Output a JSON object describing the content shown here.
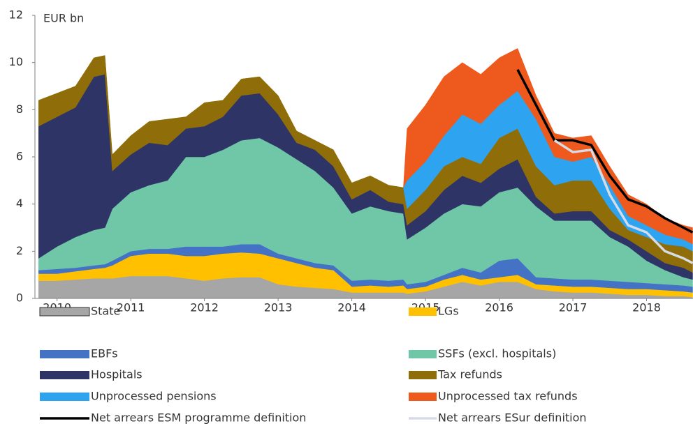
{
  "chart_data": {
    "type": "area",
    "stacked": true,
    "y_label": "EUR bn",
    "x": [
      2009.75,
      2010,
      2010.25,
      2010.5,
      2010.65,
      2010.75,
      2011,
      2011.25,
      2011.5,
      2011.75,
      2012,
      2012.25,
      2012.5,
      2012.75,
      2013,
      2013.25,
      2013.5,
      2013.75,
      2014,
      2014.25,
      2014.5,
      2014.7,
      2014.75,
      2015,
      2015.25,
      2015.5,
      2015.75,
      2016,
      2016.25,
      2016.5,
      2016.75,
      2017,
      2017.25,
      2017.5,
      2017.75,
      2018,
      2018.25,
      2018.5,
      2018.625
    ],
    "xlim": [
      2009.7,
      2018.63
    ],
    "xticks": [
      2010,
      2011,
      2012,
      2013,
      2014,
      2015,
      2016,
      2017,
      2018
    ],
    "ylim": [
      0,
      12
    ],
    "yticks": [
      0,
      2,
      4,
      6,
      8,
      10,
      12
    ],
    "series": [
      {
        "name": "State",
        "color": "#a6a6a6",
        "values": [
          0.75,
          0.75,
          0.8,
          0.85,
          0.85,
          0.85,
          0.95,
          0.95,
          0.95,
          0.85,
          0.75,
          0.85,
          0.9,
          0.9,
          0.6,
          0.5,
          0.45,
          0.4,
          0.25,
          0.25,
          0.25,
          0.25,
          0.2,
          0.3,
          0.5,
          0.7,
          0.55,
          0.7,
          0.7,
          0.4,
          0.3,
          0.25,
          0.25,
          0.2,
          0.15,
          0.15,
          0.1,
          0.1,
          0.05
        ]
      },
      {
        "name": "LGs",
        "color": "#ffc000",
        "values": [
          0.3,
          0.3,
          0.35,
          0.4,
          0.45,
          0.55,
          0.85,
          0.95,
          0.95,
          0.95,
          1.05,
          1.05,
          1.05,
          1.0,
          1.1,
          1.0,
          0.85,
          0.8,
          0.25,
          0.3,
          0.25,
          0.3,
          0.2,
          0.2,
          0.3,
          0.3,
          0.25,
          0.2,
          0.3,
          0.2,
          0.25,
          0.25,
          0.25,
          0.25,
          0.25,
          0.25,
          0.25,
          0.2,
          0.2
        ]
      },
      {
        "name": "EBFs",
        "color": "#4472c4",
        "values": [
          0.15,
          0.2,
          0.15,
          0.15,
          0.15,
          0.2,
          0.2,
          0.2,
          0.2,
          0.4,
          0.4,
          0.3,
          0.35,
          0.4,
          0.2,
          0.2,
          0.2,
          0.2,
          0.25,
          0.25,
          0.25,
          0.25,
          0.2,
          0.2,
          0.2,
          0.3,
          0.3,
          0.7,
          0.7,
          0.3,
          0.3,
          0.3,
          0.3,
          0.3,
          0.3,
          0.25,
          0.25,
          0.25,
          0.25
        ]
      },
      {
        "name": "SSFs (excl. hospitals)",
        "color": "#6fc7a7",
        "values": [
          0.5,
          0.95,
          1.3,
          1.5,
          1.55,
          2.2,
          2.5,
          2.7,
          2.9,
          3.8,
          3.8,
          4.1,
          4.4,
          4.5,
          4.5,
          4.2,
          3.9,
          3.3,
          2.85,
          3.1,
          2.95,
          2.8,
          1.9,
          2.3,
          2.6,
          2.7,
          2.8,
          2.9,
          3.0,
          3.0,
          2.45,
          2.5,
          2.5,
          1.85,
          1.5,
          0.95,
          0.6,
          0.35,
          0.3
        ]
      },
      {
        "name": "Hospitals",
        "color": "#2e3566",
        "values": [
          5.6,
          5.5,
          5.5,
          6.5,
          6.5,
          1.6,
          1.6,
          1.8,
          1.5,
          1.2,
          1.3,
          1.4,
          1.9,
          1.9,
          1.4,
          0.7,
          0.9,
          0.9,
          0.6,
          0.7,
          0.4,
          0.4,
          0.6,
          0.7,
          1.0,
          1.2,
          1.0,
          1.0,
          1.2,
          0.4,
          0.3,
          0.4,
          0.4,
          0.3,
          0.3,
          0.4,
          0.3,
          0.4,
          0.3
        ]
      },
      {
        "name": "Tax refunds",
        "color": "#8f6d08",
        "values": [
          1.1,
          1.0,
          0.9,
          0.8,
          0.8,
          0.7,
          0.8,
          0.9,
          1.1,
          0.5,
          1.0,
          0.7,
          0.7,
          0.7,
          0.8,
          0.5,
          0.4,
          0.7,
          0.7,
          0.6,
          0.7,
          0.7,
          0.7,
          0.9,
          1.0,
          0.8,
          0.8,
          1.3,
          1.3,
          1.3,
          1.2,
          1.3,
          1.3,
          0.9,
          0.4,
          0.6,
          0.8,
          0.9,
          0.9
        ]
      },
      {
        "name": "Unprocessed pensions",
        "color": "#2ea3ef",
        "values": [
          null,
          null,
          null,
          null,
          null,
          null,
          null,
          null,
          null,
          null,
          null,
          null,
          null,
          null,
          null,
          null,
          null,
          null,
          null,
          null,
          null,
          0,
          1.2,
          1.2,
          1.3,
          1.8,
          1.7,
          1.4,
          1.6,
          2.0,
          1.2,
          0.8,
          1.0,
          1.0,
          0.6,
          0.5,
          0.4,
          0.3,
          0.3
        ]
      },
      {
        "name": "Unprocessed tax refunds",
        "color": "#ee5a1d",
        "values": [
          null,
          null,
          null,
          null,
          null,
          null,
          null,
          null,
          null,
          null,
          null,
          null,
          null,
          null,
          null,
          null,
          null,
          null,
          null,
          null,
          null,
          0,
          2.2,
          2.4,
          2.5,
          2.2,
          2.1,
          2.0,
          1.8,
          1.0,
          1.0,
          1.0,
          0.9,
          0.8,
          0.9,
          0.9,
          0.7,
          0.6,
          0.7
        ]
      },
      {
        "name": "Net arrears ESM programme definition",
        "type": "line",
        "color": "#000000",
        "values": [
          null,
          null,
          null,
          null,
          null,
          null,
          null,
          null,
          null,
          null,
          null,
          null,
          null,
          null,
          null,
          null,
          null,
          null,
          null,
          null,
          null,
          null,
          null,
          null,
          null,
          null,
          null,
          null,
          9.7,
          8.2,
          6.7,
          6.7,
          6.5,
          5.2,
          4.2,
          3.9,
          3.4,
          3.0,
          2.8
        ]
      },
      {
        "name": "Net arrears ESur definition",
        "type": "line",
        "color": "#d6dbe6",
        "values": [
          null,
          null,
          null,
          null,
          null,
          null,
          null,
          null,
          null,
          null,
          null,
          null,
          null,
          null,
          null,
          null,
          null,
          null,
          null,
          null,
          null,
          null,
          null,
          null,
          null,
          null,
          null,
          null,
          null,
          null,
          6.7,
          6.2,
          6.3,
          4.4,
          3.1,
          2.8,
          2.0,
          1.7,
          1.5
        ]
      }
    ]
  }
}
